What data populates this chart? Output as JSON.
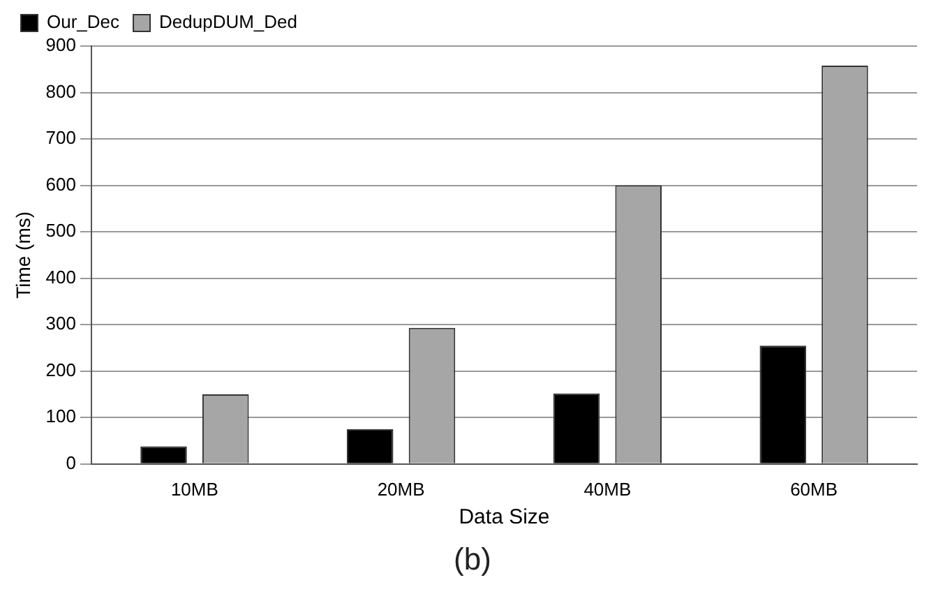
{
  "chart_data": {
    "type": "bar",
    "xlabel": "Data Size",
    "ylabel": "Time (ms)",
    "categories": [
      "10MB",
      "20MB",
      "40MB",
      "60MB"
    ],
    "series": [
      {
        "name": "Our_Dec",
        "color": "#000000",
        "values": [
          38,
          75,
          152,
          255
        ]
      },
      {
        "name": "DedupDUM_Ded",
        "color": "#a6a6a6",
        "values": [
          150,
          293,
          600,
          858
        ]
      }
    ],
    "ylim": [
      0,
      900
    ],
    "yticks": [
      0,
      100,
      200,
      300,
      400,
      500,
      600,
      700,
      800,
      900
    ],
    "grid": "y",
    "legend": "top left",
    "annotations": [
      "(b)"
    ]
  }
}
